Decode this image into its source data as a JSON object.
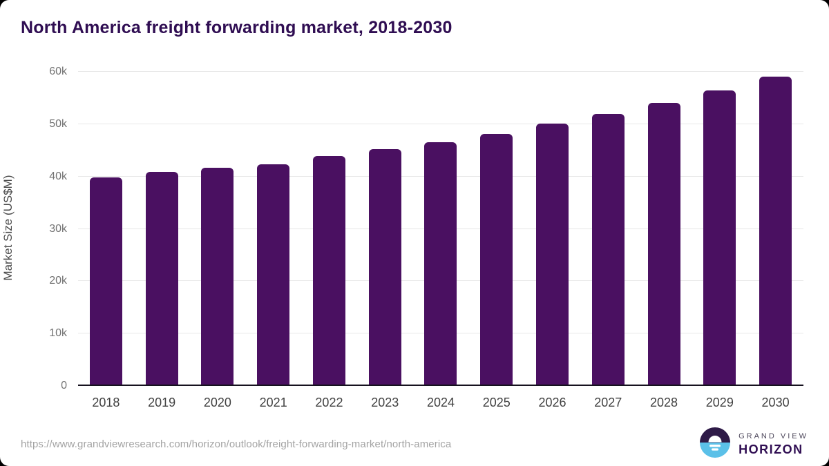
{
  "title": "North America freight forwarding market, 2018-2030",
  "colors": {
    "bar": "#4a1061",
    "title_text": "#2f0d52",
    "axis_line": "#16121f",
    "gridline": "#e7e7e7",
    "y_tick_label": "#737373",
    "x_tick_label": "#414141",
    "source_url_text": "#a3a3a3",
    "logo_purple": "#2e1a47",
    "logo_blue": "#5bc0e8"
  },
  "chart_data": {
    "type": "bar",
    "title": "North America freight forwarding market, 2018-2030",
    "xlabel": "",
    "ylabel": "Market Size (US$M)",
    "unit": "US$M",
    "categories": [
      "2018",
      "2019",
      "2020",
      "2021",
      "2022",
      "2023",
      "2024",
      "2025",
      "2026",
      "2027",
      "2028",
      "2029",
      "2030"
    ],
    "values": [
      39700,
      40750,
      41500,
      42250,
      43800,
      45150,
      46450,
      48050,
      49950,
      51800,
      53950,
      56300,
      58950
    ],
    "ylim": [
      0,
      60000
    ],
    "yticks": [
      {
        "value": 0,
        "label": "0"
      },
      {
        "value": 10000,
        "label": "10k"
      },
      {
        "value": 20000,
        "label": "20k"
      },
      {
        "value": 30000,
        "label": "30k"
      },
      {
        "value": 40000,
        "label": "40k"
      },
      {
        "value": 50000,
        "label": "50k"
      },
      {
        "value": 60000,
        "label": "60k"
      }
    ],
    "grid": "horizontal",
    "legend": "none",
    "bar_color": "#4a1061"
  },
  "footer": {
    "source_url": "https://www.grandviewresearch.com/horizon/outlook/freight-forwarding-market/north-america",
    "logo": {
      "line1": "GRAND VIEW",
      "line2": "HORIZON",
      "icon": "horizon-sun-circle-icon"
    }
  }
}
